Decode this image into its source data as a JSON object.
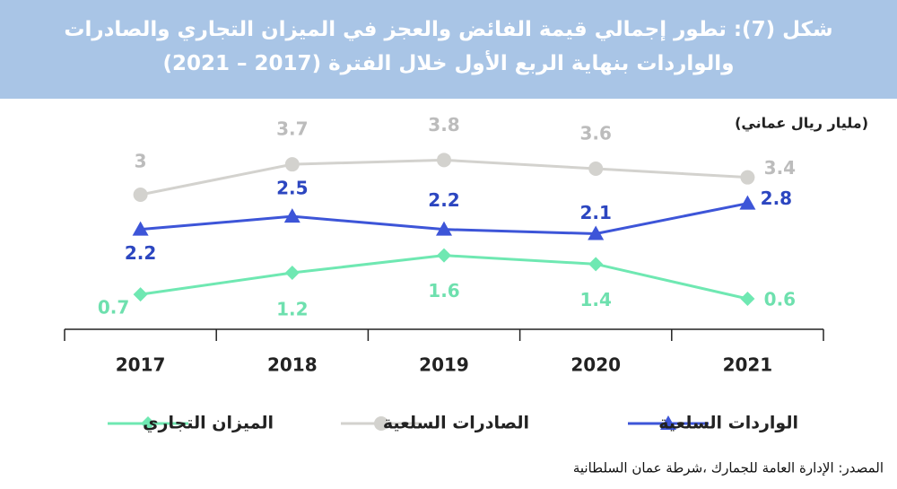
{
  "chart_data": {
    "type": "line",
    "title": "شكل (7): تطور إجمالي قيمة الفائض والعجز في الميزان التجاري والصادرات والواردات بنهاية الربع الأول خلال الفترة (2017 – 2021)",
    "unit": "(مليار ريال عماني)",
    "source": "المصدر: الإدارة العامة للجمارك ،شرطة عمان السلطانية",
    "categories": [
      "2017",
      "2018",
      "2019",
      "2020",
      "2021"
    ],
    "ylim": [
      0,
      4.2
    ],
    "series": [
      {
        "name": "الواردات السلعية",
        "color": "#3d55d8",
        "label_color": "#2c46c0",
        "marker": "triangle",
        "values": [
          2.2,
          2.5,
          2.2,
          2.1,
          2.8
        ]
      },
      {
        "name": "الصادرات السلعية",
        "color": "#d3d2ce",
        "label_color": "#bcbcbc",
        "marker": "circle",
        "values": [
          3.0,
          3.7,
          3.8,
          3.6,
          3.4
        ]
      },
      {
        "name": "الميزان التجاري",
        "color": "#6fe8b2",
        "label_color": "#6ee0ae",
        "marker": "diamond",
        "values": [
          0.7,
          1.2,
          1.6,
          1.4,
          0.6
        ]
      }
    ]
  }
}
